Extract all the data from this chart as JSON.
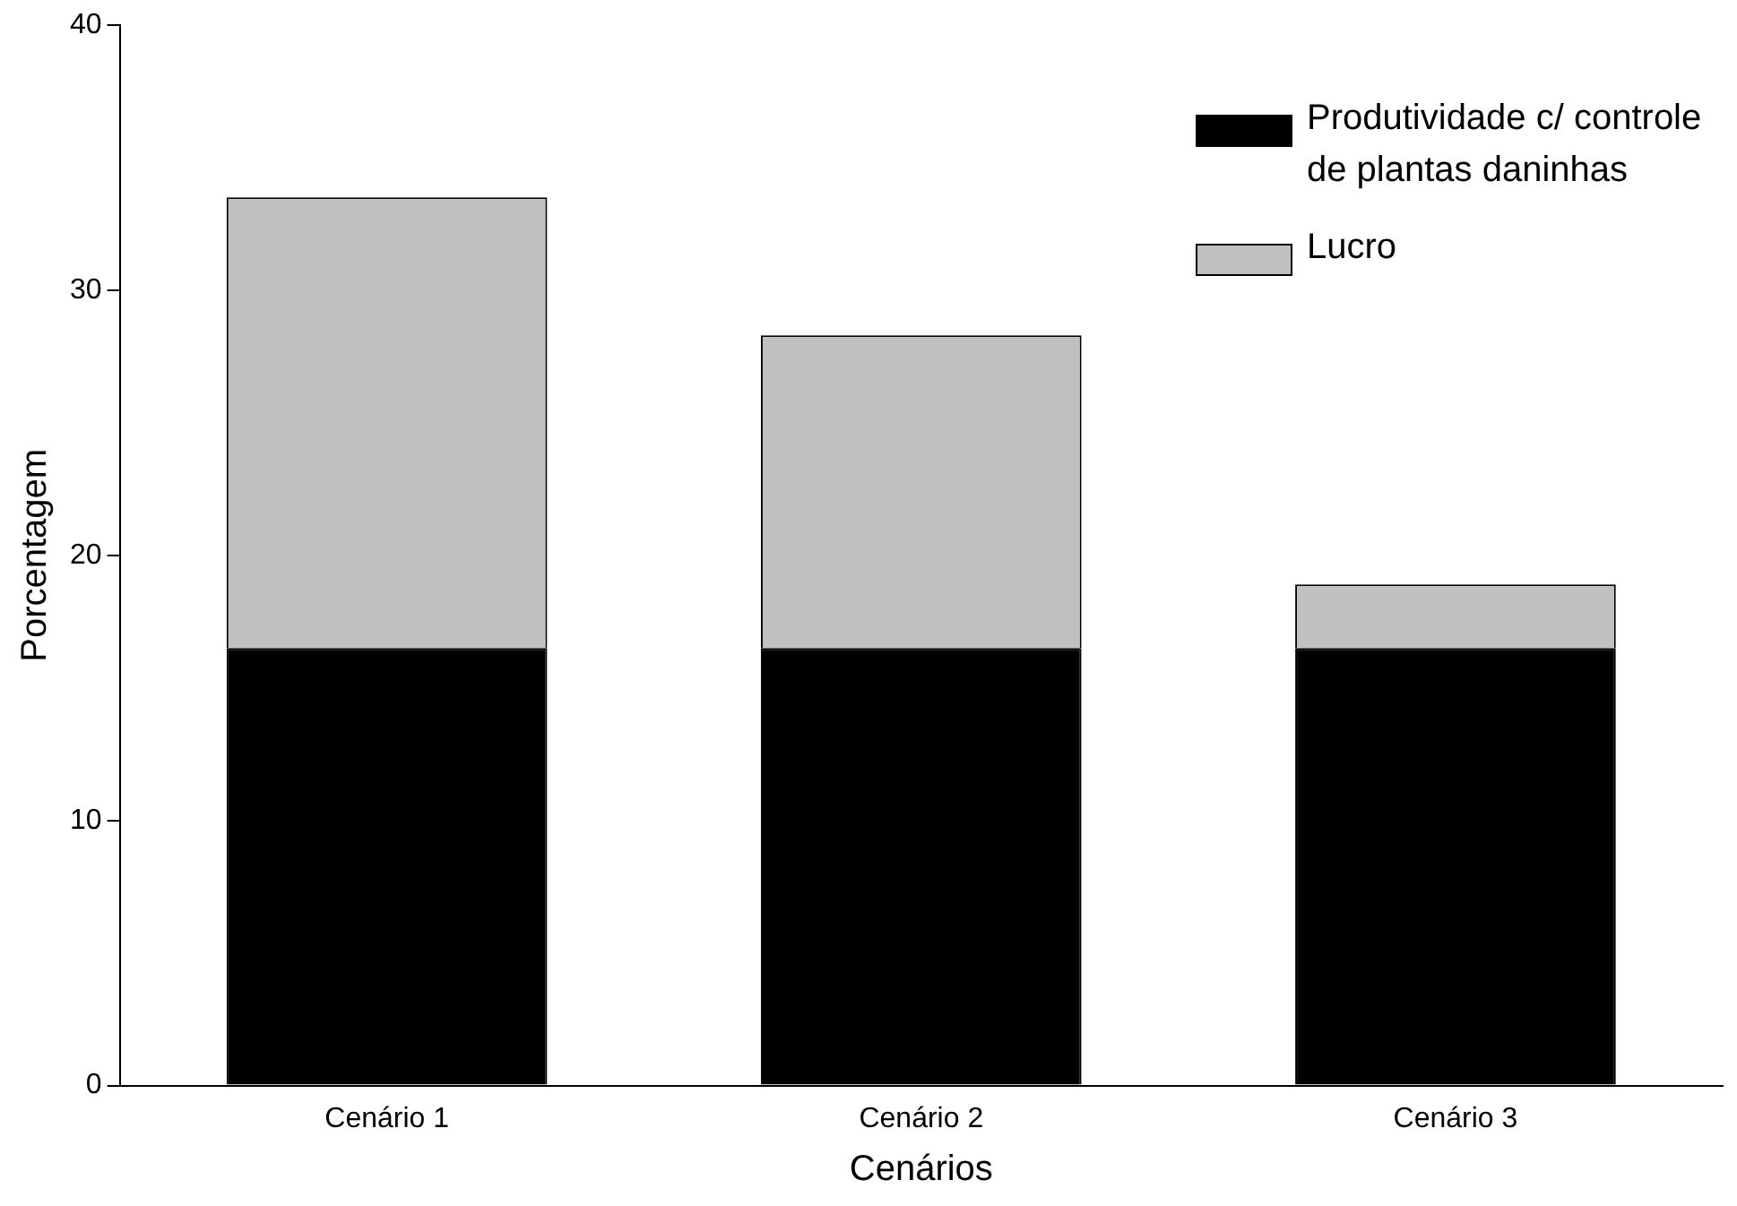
{
  "chart_data": {
    "type": "bar",
    "stacked": true,
    "xlabel": "Cenários",
    "ylabel": "Porcentagem",
    "categories": [
      "Cenário 1",
      "Cenário 2",
      "Cenário 3"
    ],
    "series": [
      {
        "name": "Produtividade c/ controle de plantas daninhas",
        "color": "#000000",
        "values": [
          16.5,
          16.5,
          16.5
        ]
      },
      {
        "name": "Lucro",
        "color": "#c0c0c0",
        "values": [
          17.0,
          11.8,
          2.4
        ]
      }
    ],
    "ylim": [
      0,
      40
    ],
    "yticks": [
      0,
      10,
      20,
      30,
      40
    ],
    "grid": false,
    "legend": "top right"
  }
}
